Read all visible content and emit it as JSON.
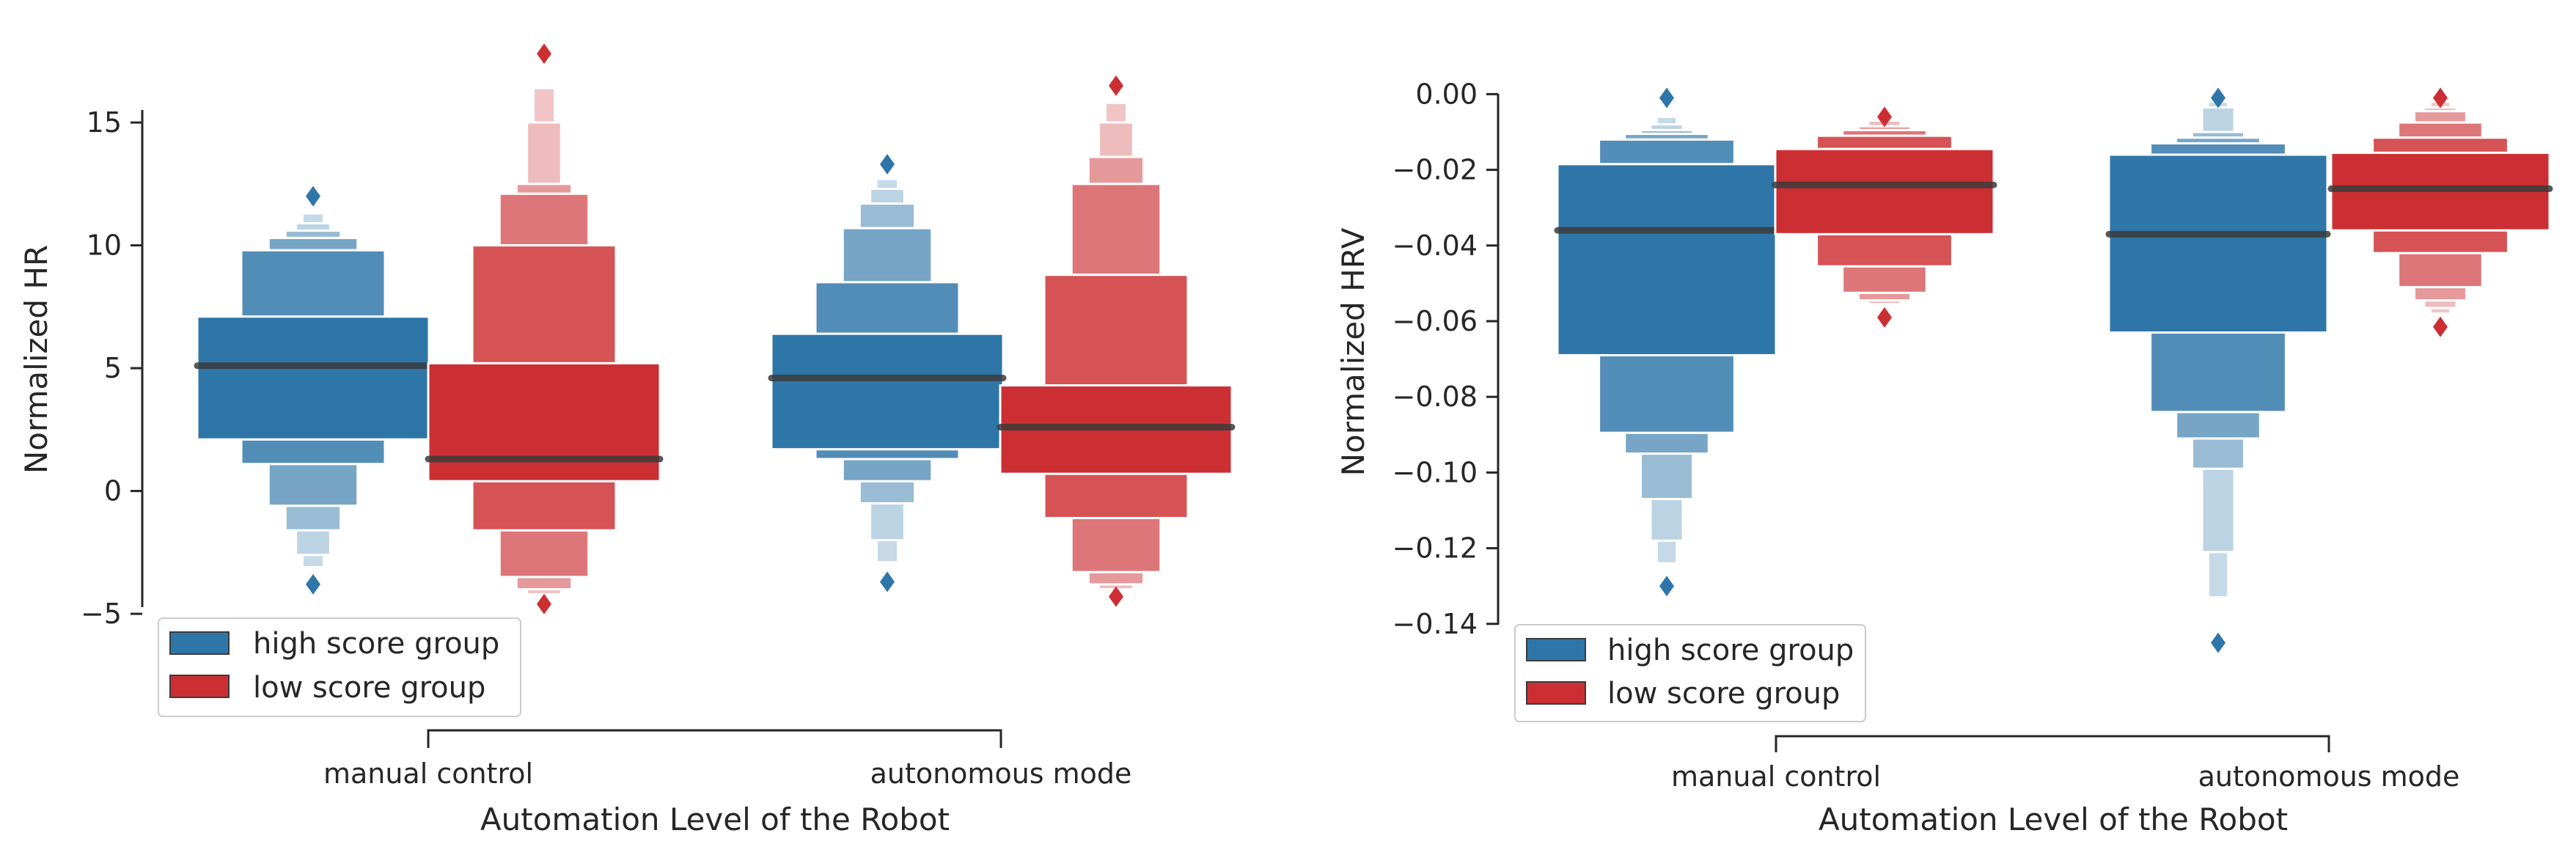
{
  "colors": {
    "high": "#2f76a8",
    "low": "#cc2f33",
    "median": "#3b3b3b",
    "axis": "#262626",
    "legend_border": "#cccccc"
  },
  "chart_data": [
    {
      "type": "boxenplot",
      "xlabel": "Automation Level of the Robot",
      "ylabel": "Normalized HR",
      "ylim": [
        -5,
        16.5
      ],
      "yticks": [
        15,
        10,
        5,
        0,
        -5
      ],
      "ytick_labels": [
        "15",
        "10",
        "5",
        "0",
        "−5"
      ],
      "categories": [
        "manual control",
        "autonomous mode"
      ],
      "legend": [
        "high score group",
        "low score group"
      ],
      "legend_placement": "lower-left",
      "series": [
        {
          "name": "high score group",
          "color_key": "high",
          "groups": [
            {
              "category": "manual control",
              "median": 5.1,
              "levels": [
                [
                  2.1,
                  7.1
                ],
                [
                  1.1,
                  9.8
                ],
                [
                  -0.6,
                  10.3
                ],
                [
                  -1.6,
                  10.6
                ],
                [
                  -2.6,
                  10.9
                ],
                [
                  -3.1,
                  11.3
                ]
              ],
              "outliers": [
                -3.8,
                12.0
              ]
            },
            {
              "category": "autonomous mode",
              "median": 4.6,
              "levels": [
                [
                  1.7,
                  6.4
                ],
                [
                  1.3,
                  8.5
                ],
                [
                  0.4,
                  10.7
                ],
                [
                  -0.5,
                  11.7
                ],
                [
                  -2.0,
                  12.3
                ],
                [
                  -2.9,
                  12.7
                ]
              ],
              "outliers": [
                -3.7,
                13.3
              ]
            }
          ]
        },
        {
          "name": "low score group",
          "color_key": "low",
          "groups": [
            {
              "category": "manual control",
              "median": 1.3,
              "levels": [
                [
                  0.4,
                  5.2
                ],
                [
                  -1.6,
                  10.0
                ],
                [
                  -3.5,
                  12.1
                ],
                [
                  -4.0,
                  12.5
                ],
                [
                  -4.2,
                  15.0
                ],
                [
                  -4.3,
                  16.4
                ]
              ],
              "outliers": [
                -4.6,
                17.8
              ]
            },
            {
              "category": "autonomous mode",
              "median": 2.6,
              "levels": [
                [
                  0.7,
                  4.3
                ],
                [
                  -1.1,
                  8.8
                ],
                [
                  -3.3,
                  12.5
                ],
                [
                  -3.8,
                  13.6
                ],
                [
                  -4.0,
                  15.0
                ],
                [
                  -4.1,
                  15.8
                ]
              ],
              "outliers": [
                -4.3,
                16.5
              ]
            }
          ]
        }
      ]
    },
    {
      "type": "boxenplot",
      "xlabel": "Automation Level of the Robot",
      "ylabel": "Normalized HRV",
      "ylim": [
        -0.14,
        0.0
      ],
      "yticks": [
        0.0,
        -0.02,
        -0.04,
        -0.06,
        -0.08,
        -0.1,
        -0.12,
        -0.14
      ],
      "ytick_labels": [
        "0.00",
        "−0.02",
        "−0.04",
        "−0.06",
        "−0.08",
        "−0.10",
        "−0.12",
        "−0.14"
      ],
      "categories": [
        "manual control",
        "autonomous mode"
      ],
      "legend": [
        "high score group",
        "low score group"
      ],
      "legend_placement": "lower-left",
      "series": [
        {
          "name": "high score group",
          "color_key": "high",
          "groups": [
            {
              "category": "manual control",
              "median": -0.036,
              "levels": [
                [
                  -0.069,
                  -0.0185
                ],
                [
                  -0.0895,
                  -0.012
                ],
                [
                  -0.095,
                  -0.0105
                ],
                [
                  -0.107,
                  -0.0095
                ],
                [
                  -0.118,
                  -0.008
                ],
                [
                  -0.124,
                  -0.006
                ]
              ],
              "outliers": [
                -0.13,
                -0.001
              ]
            },
            {
              "category": "autonomous mode",
              "median": -0.037,
              "levels": [
                [
                  -0.063,
                  -0.016
                ],
                [
                  -0.084,
                  -0.013
                ],
                [
                  -0.091,
                  -0.0115
                ],
                [
                  -0.099,
                  -0.01
                ],
                [
                  -0.121,
                  -0.0035
                ],
                [
                  -0.133,
                  -0.002
                ]
              ],
              "outliers": [
                -0.145,
                -0.001
              ]
            }
          ]
        },
        {
          "name": "low score group",
          "color_key": "low",
          "groups": [
            {
              "category": "manual control",
              "median": -0.024,
              "levels": [
                [
                  -0.037,
                  -0.0145
                ],
                [
                  -0.0455,
                  -0.011
                ],
                [
                  -0.0525,
                  -0.0095
                ],
                [
                  -0.0545,
                  -0.0085
                ],
                [
                  -0.0555,
                  -0.007
                ]
              ],
              "outliers": [
                -0.059,
                -0.006
              ]
            },
            {
              "category": "autonomous mode",
              "median": -0.025,
              "levels": [
                [
                  -0.036,
                  -0.0155
                ],
                [
                  -0.042,
                  -0.0115
                ],
                [
                  -0.051,
                  -0.0075
                ],
                [
                  -0.0545,
                  -0.0045
                ],
                [
                  -0.0565,
                  -0.0035
                ],
                [
                  -0.058,
                  -0.002
                ]
              ],
              "outliers": [
                -0.0615,
                -0.001
              ]
            }
          ]
        }
      ]
    }
  ]
}
